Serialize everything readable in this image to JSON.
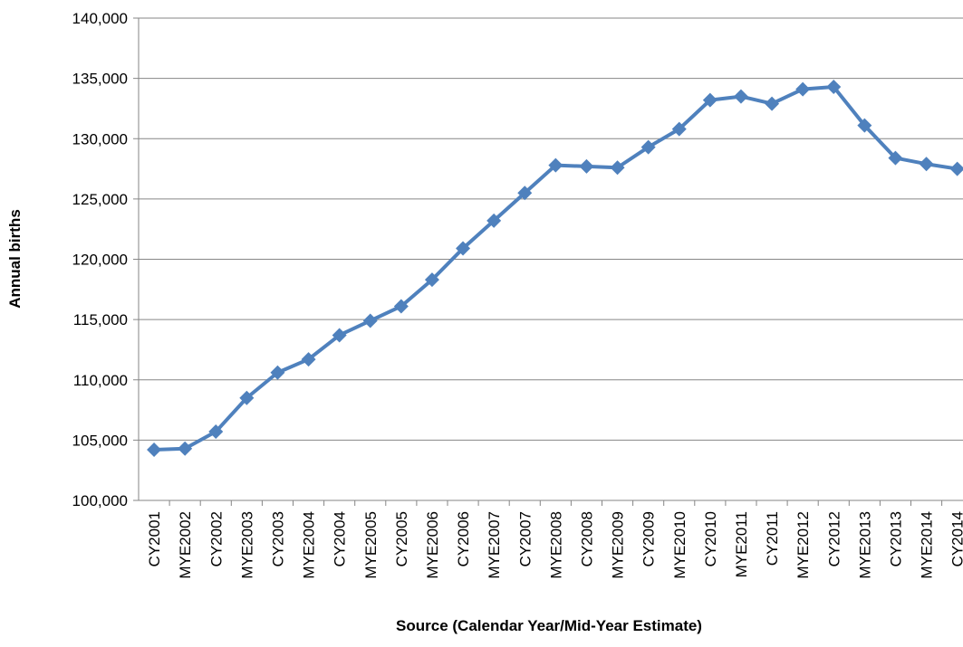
{
  "chart_data": {
    "type": "line",
    "x_label": "Source (Calendar Year/Mid-Year Estimate)",
    "y_label": "Annual births",
    "categories": [
      "CY2001",
      "MYE2002",
      "CY2002",
      "MYE2003",
      "CY2003",
      "MYE2004",
      "CY2004",
      "MYE2005",
      "CY2005",
      "MYE2006",
      "CY2006",
      "MYE2007",
      "CY2007",
      "MYE2008",
      "CY2008",
      "MYE2009",
      "CY2009",
      "MYE2010",
      "CY2010",
      "MYE2011",
      "CY2011",
      "MYE2012",
      "CY2012",
      "MYE2013",
      "CY2013",
      "MYE2014",
      "CY2014"
    ],
    "values": [
      104200,
      104300,
      105700,
      108500,
      110600,
      111700,
      113700,
      114900,
      116100,
      118300,
      120900,
      123200,
      125500,
      127800,
      127700,
      127600,
      129300,
      130800,
      133200,
      133500,
      132900,
      134100,
      134300,
      131100,
      128400,
      127900,
      127500
    ],
    "color": "#4f81bd",
    "ylim": [
      100000,
      140000
    ],
    "yticks": [
      {
        "value": 100000,
        "label": "100,000"
      },
      {
        "value": 105000,
        "label": "105,000"
      },
      {
        "value": 110000,
        "label": "110,000"
      },
      {
        "value": 115000,
        "label": "115,000"
      },
      {
        "value": 120000,
        "label": "120,000"
      },
      {
        "value": 125000,
        "label": "125,000"
      },
      {
        "value": 130000,
        "label": "130,000"
      },
      {
        "value": 135000,
        "label": "135,000"
      },
      {
        "value": 140000,
        "label": "140,000"
      }
    ],
    "grid": true
  }
}
